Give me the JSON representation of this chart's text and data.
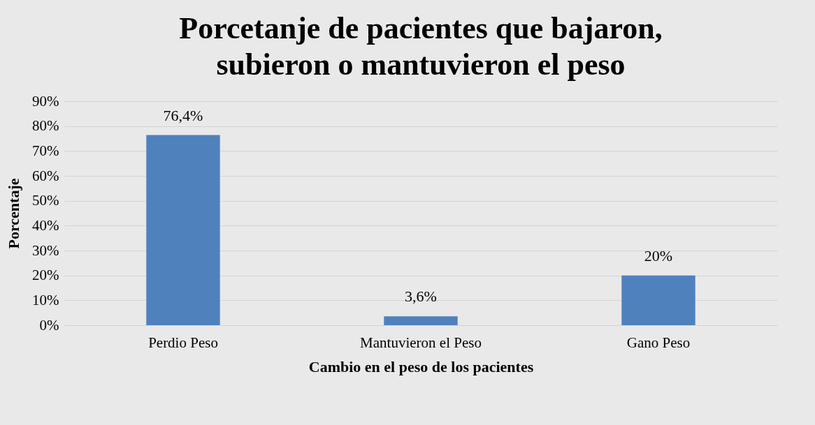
{
  "chart_data": {
    "type": "bar",
    "title": "Porcetanje de pacientes que bajaron, subieron o mantuvieron el peso",
    "xlabel": "Cambio en el peso de los pacientes",
    "ylabel": "Porcentaje",
    "categories": [
      "Perdio Peso",
      "Mantuvieron el Peso",
      "Gano Peso"
    ],
    "values": [
      76.4,
      3.6,
      20
    ],
    "value_labels": [
      "76,4%",
      "3,6%",
      "20%"
    ],
    "color": "#4f81bd",
    "ylim": [
      0,
      90
    ],
    "yticks": [
      {
        "value": 0,
        "label": "0%"
      },
      {
        "value": 10,
        "label": "10%"
      },
      {
        "value": 20,
        "label": "20%"
      },
      {
        "value": 30,
        "label": "30%"
      },
      {
        "value": 40,
        "label": "40%"
      },
      {
        "value": 50,
        "label": "50%"
      },
      {
        "value": 60,
        "label": "60%"
      },
      {
        "value": 70,
        "label": "70%"
      },
      {
        "value": 80,
        "label": "80%"
      },
      {
        "value": 90,
        "label": "90%"
      }
    ],
    "grid": "y"
  }
}
